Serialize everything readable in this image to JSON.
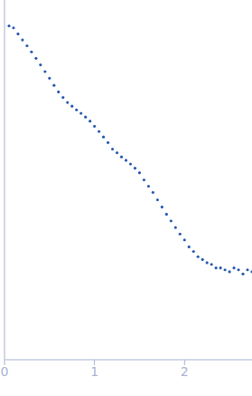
{
  "chart_data": {
    "type": "scatter",
    "x": [
      0.05,
      0.1,
      0.15,
      0.2,
      0.25,
      0.3,
      0.35,
      0.4,
      0.45,
      0.5,
      0.55,
      0.6,
      0.65,
      0.7,
      0.75,
      0.8,
      0.85,
      0.9,
      0.95,
      1.0,
      1.05,
      1.1,
      1.15,
      1.2,
      1.25,
      1.3,
      1.35,
      1.4,
      1.45,
      1.5,
      1.55,
      1.6,
      1.65,
      1.7,
      1.75,
      1.8,
      1.85,
      1.9,
      1.95,
      2.0,
      2.05,
      2.1,
      2.15,
      2.2,
      2.25,
      2.3,
      2.35,
      2.4,
      2.45,
      2.5,
      2.55,
      2.6,
      2.65,
      2.7,
      2.75
    ],
    "values": [
      10.3,
      9.8,
      8.4,
      7.2,
      6.2,
      5.3,
      4.5,
      3.8,
      3.2,
      2.7,
      2.25,
      1.9,
      1.65,
      1.45,
      1.32,
      1.2,
      1.1,
      1.0,
      0.9,
      0.79,
      0.69,
      0.6,
      0.52,
      0.44,
      0.4,
      0.36,
      0.33,
      0.3,
      0.27,
      0.24,
      0.2,
      0.17,
      0.145,
      0.12,
      0.1,
      0.083,
      0.07,
      0.059,
      0.05,
      0.043,
      0.036,
      0.032,
      0.028,
      0.026,
      0.024,
      0.023,
      0.021,
      0.021,
      0.02,
      0.019,
      0.021,
      0.02,
      0.018,
      0.02,
      0.019
    ],
    "color": "#2f5fb3",
    "marker": "circle",
    "xlim": [
      0,
      2.75
    ],
    "xticks": [
      0,
      1,
      2
    ],
    "ylim": [
      0.002,
      20
    ],
    "yticks": [
      0.01,
      0.1,
      1
    ],
    "log": "y",
    "tick_labels": "x"
  }
}
